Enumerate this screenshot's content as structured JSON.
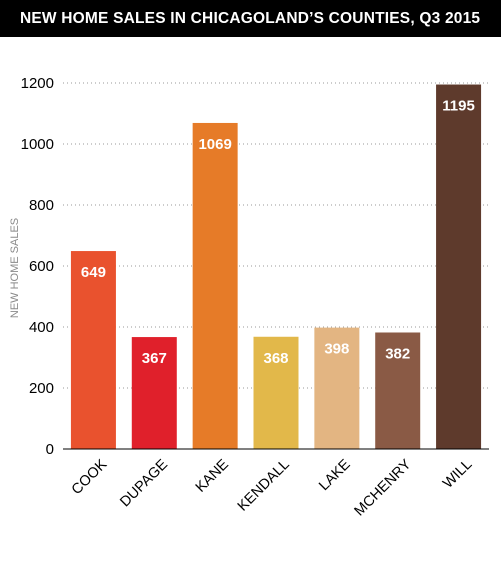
{
  "chart_data": {
    "type": "bar",
    "title": "NEW HOME SALES IN CHICAGOLAND’S COUNTIES, Q3 2015",
    "xlabel": "",
    "ylabel": "NEW HOME SALES",
    "ylim": [
      0,
      1200
    ],
    "yticks": [
      0,
      200,
      400,
      600,
      800,
      1000,
      1200
    ],
    "grid": true,
    "legend": "none",
    "categories": [
      "COOK",
      "DUPAGE",
      "KANE",
      "KENDALL",
      "LAKE",
      "MCHENRY",
      "WILL"
    ],
    "values": [
      649,
      367,
      1069,
      368,
      398,
      382,
      1195
    ],
    "colors": [
      "#e9522e",
      "#e0202b",
      "#e67b28",
      "#e2b84a",
      "#e3b582",
      "#8a5a45",
      "#5e3a2c"
    ]
  }
}
